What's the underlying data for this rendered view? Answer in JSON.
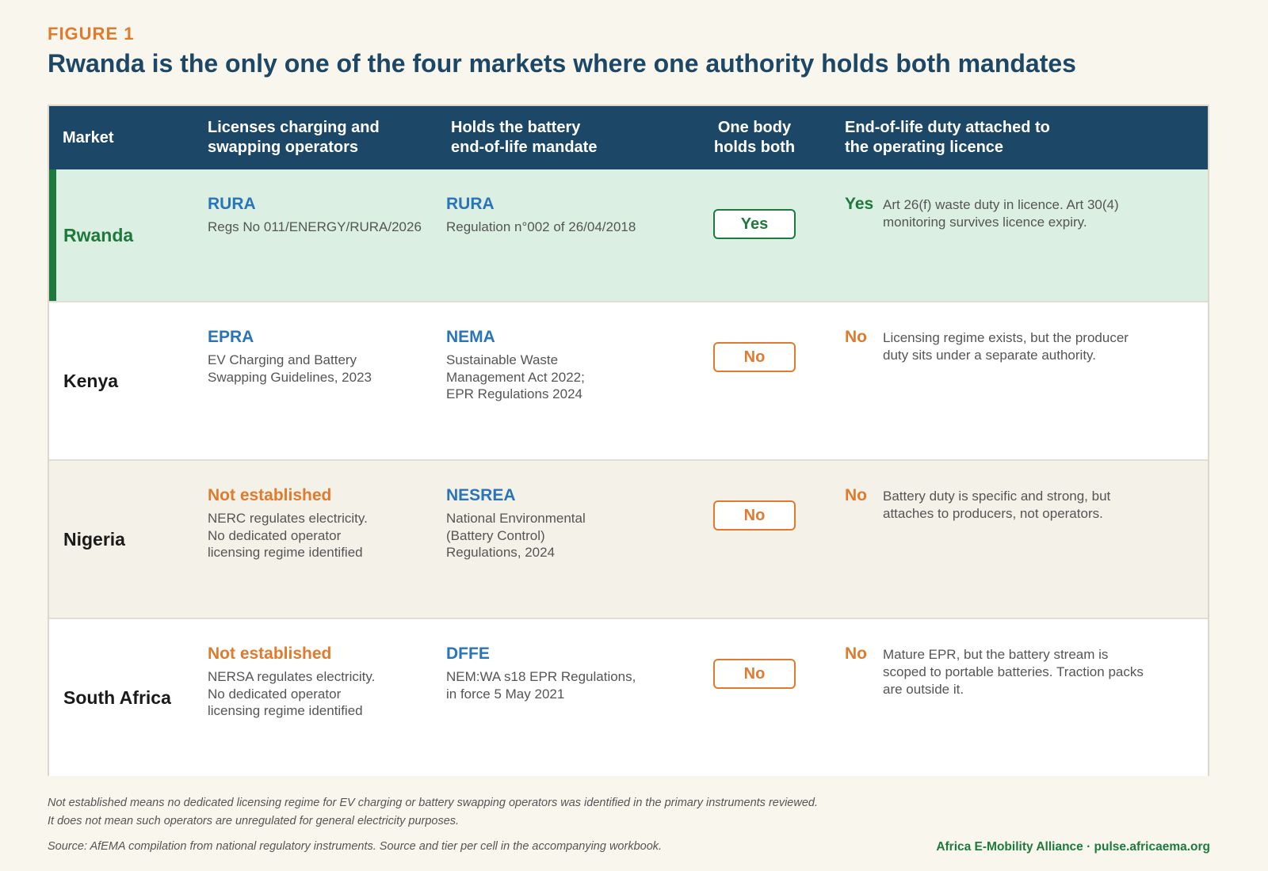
{
  "kicker": "FIGURE 1",
  "title": "Rwanda is the only one of the four markets where one authority holds both mandates",
  "chart_data": {
    "type": "table",
    "columns": [
      "Market",
      "Licenses charging and\nswapping operators",
      "Holds the battery\nend-of-life mandate",
      "One body\nholds both",
      "End-of-life duty attached to\nthe operating licence"
    ],
    "rows": [
      {
        "market": "Rwanda",
        "highlight": true,
        "licensor": "RURA",
        "licensor_status": "named",
        "licensor_detail": "Regs No 011/ENERGY/RURA/2026",
        "eol_holder": "RURA",
        "eol_detail": "Regulation n°002 of 26/04/2018",
        "one_body": "Yes",
        "duty_verdict": "Yes",
        "duty_note": "Art 26(f) waste duty in licence. Art 30(4) monitoring survives licence expiry."
      },
      {
        "market": "Kenya",
        "highlight": false,
        "licensor": "EPRA",
        "licensor_status": "named",
        "licensor_detail": "EV Charging and Battery\nSwapping Guidelines, 2023",
        "eol_holder": "NEMA",
        "eol_detail": "Sustainable Waste\nManagement Act 2022;\nEPR Regulations 2024",
        "one_body": "No",
        "duty_verdict": "No",
        "duty_note": "Licensing regime exists, but the producer duty sits under a separate authority."
      },
      {
        "market": "Nigeria",
        "highlight": false,
        "licensor": "Not established",
        "licensor_status": "none",
        "licensor_detail": "NERC regulates electricity.\nNo dedicated operator\nlicensing regime identified",
        "eol_holder": "NESREA",
        "eol_detail": "National Environmental\n(Battery Control)\nRegulations, 2024",
        "one_body": "No",
        "duty_verdict": "No",
        "duty_note": "Battery duty is specific and strong, but attaches to producers, not operators."
      },
      {
        "market": "South Africa",
        "highlight": false,
        "licensor": "Not established",
        "licensor_status": "none",
        "licensor_detail": "NERSA regulates electricity.\nNo dedicated operator\nlicensing regime identified",
        "eol_holder": "DFFE",
        "eol_detail": "NEM:WA s18 EPR Regulations,\nin force 5 May 2021",
        "one_body": "No",
        "duty_verdict": "No",
        "duty_note": "Mature EPR, but the battery stream is scoped to portable batteries. Traction packs are outside it."
      }
    ]
  },
  "footnotes": [
    "Not established means no dedicated licensing regime for EV charging or battery swapping operators was identified in the primary instruments reviewed.",
    "It does not mean such operators are unregulated for general electricity purposes.",
    "Source: AfEMA compilation from national regulatory instruments. Source and tier per cell in the accompanying workbook."
  ],
  "brand": "Africa E-Mobility Alliance · pulse.africaema.org",
  "colors": {
    "header_bg": "#1c4766",
    "highlight_row_bg": "#dcefe3",
    "alt_row_bg": "#f4f1e9",
    "accent_green": "#1e7a3c",
    "accent_orange": "#e07b2e",
    "agency_blue": "#2a74b8"
  }
}
